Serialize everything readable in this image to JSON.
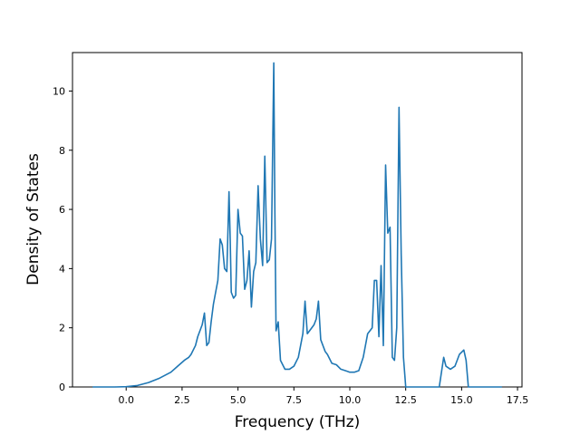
{
  "chart_data": {
    "type": "line",
    "xlabel": "Frequency (THz)",
    "ylabel": "Density of States",
    "xlim": [
      -2.4,
      17.7
    ],
    "ylim": [
      0,
      11.3
    ],
    "xticks": [
      0.0,
      2.5,
      5.0,
      7.5,
      10.0,
      12.5,
      15.0,
      17.5
    ],
    "xtick_labels": [
      "0.0",
      "2.5",
      "5.0",
      "7.5",
      "10.0",
      "12.5",
      "15.0",
      "17.5"
    ],
    "yticks": [
      0,
      2,
      4,
      6,
      8,
      10
    ],
    "ytick_labels": [
      "0",
      "2",
      "4",
      "6",
      "8",
      "10"
    ],
    "grid": false,
    "color": "#1f77b4",
    "series": [
      {
        "x": [
          -1.5,
          -0.5,
          0.0,
          0.5,
          1.0,
          1.5,
          2.0,
          2.3,
          2.6,
          2.8,
          2.9,
          3.1,
          3.2,
          3.4,
          3.5,
          3.6,
          3.7,
          3.8,
          3.9,
          4.1,
          4.2,
          4.3,
          4.4,
          4.5,
          4.6,
          4.65,
          4.7,
          4.8,
          4.9,
          5.0,
          5.1,
          5.2,
          5.3,
          5.4,
          5.5,
          5.6,
          5.7,
          5.8,
          5.9,
          6.0,
          6.1,
          6.2,
          6.3,
          6.4,
          6.5,
          6.6,
          6.65,
          6.7,
          6.8,
          6.9,
          7.1,
          7.3,
          7.5,
          7.7,
          7.9,
          8.0,
          8.1,
          8.2,
          8.4,
          8.5,
          8.6,
          8.7,
          8.9,
          9.0,
          9.2,
          9.4,
          9.6,
          9.8,
          10.0,
          10.2,
          10.4,
          10.6,
          10.8,
          11.0,
          11.1,
          11.2,
          11.3,
          11.4,
          11.5,
          11.6,
          11.7,
          11.8,
          11.9,
          12.0,
          12.1,
          12.2,
          12.3,
          12.4,
          12.5,
          12.6,
          12.8,
          14.0,
          14.2,
          14.3,
          14.5,
          14.7,
          14.9,
          15.1,
          15.2,
          15.3,
          16.8
        ],
        "y": [
          0,
          0,
          0.01,
          0.05,
          0.15,
          0.3,
          0.5,
          0.7,
          0.9,
          1.0,
          1.1,
          1.4,
          1.7,
          2.1,
          2.5,
          1.4,
          1.5,
          2.2,
          2.8,
          3.6,
          5.0,
          4.8,
          4.0,
          3.9,
          6.6,
          5.0,
          3.2,
          3.0,
          3.1,
          6.0,
          5.2,
          5.1,
          3.3,
          3.6,
          4.6,
          2.7,
          3.9,
          4.2,
          6.8,
          5.0,
          4.1,
          7.8,
          4.2,
          4.3,
          5.0,
          10.95,
          6.0,
          1.9,
          2.2,
          0.9,
          0.6,
          0.6,
          0.7,
          1.0,
          1.8,
          2.9,
          1.8,
          1.9,
          2.1,
          2.3,
          2.9,
          1.6,
          1.2,
          1.1,
          0.8,
          0.75,
          0.6,
          0.55,
          0.5,
          0.5,
          0.55,
          1.0,
          1.8,
          2.0,
          3.6,
          3.6,
          1.7,
          4.1,
          1.4,
          7.5,
          5.2,
          5.4,
          1.0,
          0.9,
          2.0,
          9.45,
          4.5,
          1.0,
          0.0,
          0.0,
          0.0,
          0.0,
          1.0,
          0.7,
          0.6,
          0.7,
          1.1,
          1.25,
          0.9,
          0.0,
          0.0
        ]
      }
    ]
  }
}
